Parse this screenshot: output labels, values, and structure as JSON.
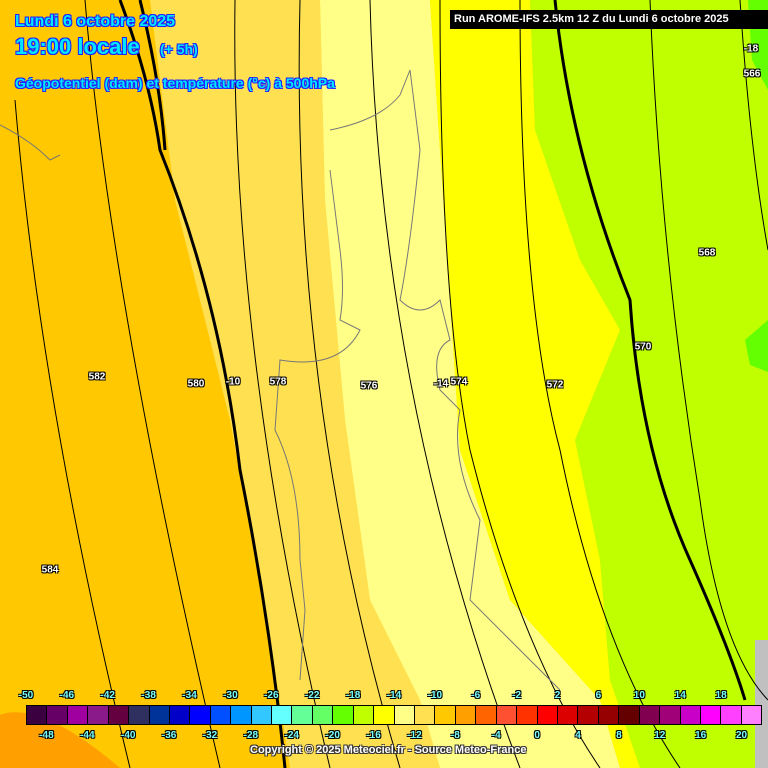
{
  "header": {
    "date": "Lundi 6 octobre 2025",
    "time": "19:00 locale",
    "lead": "(+ 5h)",
    "parameter": "Géopotentiel (dam) et température (°c) à 500hPa"
  },
  "run_banner": "Run AROME-IFS 2.5km 12 Z du Lundi 6 octobre 2025",
  "map_labels": {
    "geopotential": [
      "584",
      "582",
      "580",
      "578",
      "576",
      "574",
      "572",
      "570",
      "568",
      "566"
    ],
    "temperature": [
      "-10",
      "-14",
      "-18"
    ]
  },
  "field_colors": {
    "minus8": "#ff9f00",
    "minus10": "#ffc800",
    "minus12": "#ffe050",
    "minus14": "#ffff88",
    "minus16": "#ffff00",
    "minus18": "#c0ff00",
    "minus20": "#64ff00",
    "no_data": "#c0c0c0"
  },
  "legend": {
    "unit": "°c",
    "values": [
      -50,
      -48,
      -46,
      -44,
      -42,
      -40,
      -38,
      -36,
      -34,
      -32,
      -30,
      -28,
      -26,
      -24,
      -22,
      -20,
      -18,
      -16,
      -14,
      -12,
      -10,
      -8,
      -6,
      -4,
      -2,
      0,
      2,
      4,
      6,
      8,
      10,
      12,
      14,
      16,
      18,
      20
    ],
    "colors": [
      "#3a0040",
      "#660066",
      "#a000a0",
      "#8a1a8a",
      "#640040",
      "#303060",
      "#003399",
      "#0000c8",
      "#0000ff",
      "#0050ff",
      "#0096ff",
      "#32c8ff",
      "#64ffff",
      "#64ff96",
      "#64ff64",
      "#64ff00",
      "#c0ff00",
      "#ffff00",
      "#ffff88",
      "#ffe050",
      "#ffc800",
      "#ff9f00",
      "#ff6400",
      "#ff5032",
      "#ff3200",
      "#ff0000",
      "#dc0000",
      "#b40000",
      "#960000",
      "#640000",
      "#820050",
      "#a00078",
      "#c800c8",
      "#ff00ff",
      "#ff40ff",
      "#ff80ff"
    ]
  },
  "copyright": "Copyright © 2025 Meteociel.fr - Source Meteo-France"
}
